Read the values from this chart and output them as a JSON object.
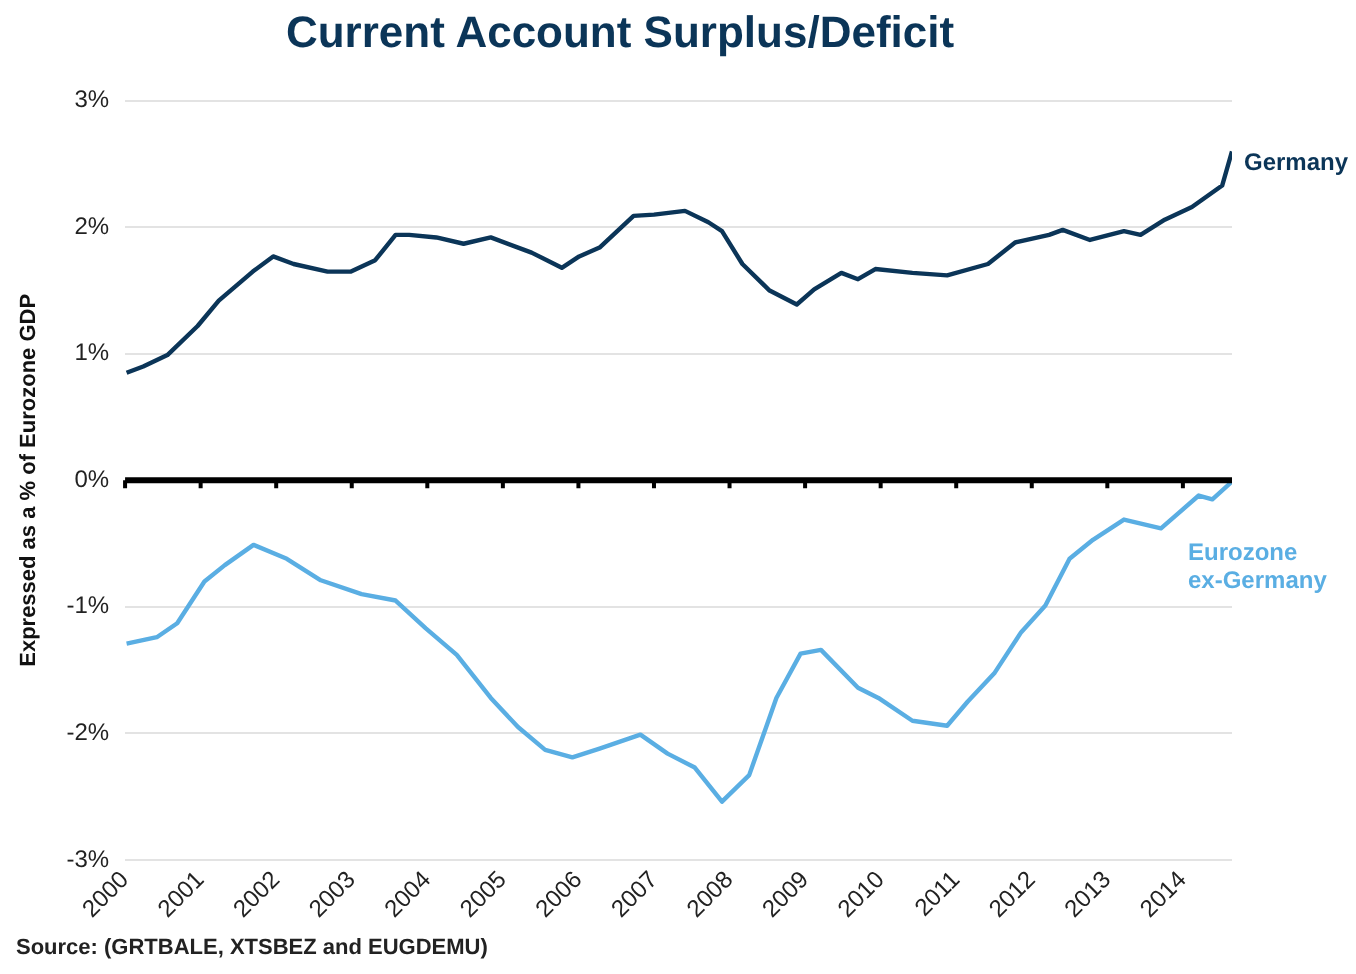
{
  "chart_data": {
    "type": "line",
    "title": "Current Account Surplus/Deficit",
    "ylabel": "Expressed as a % of Eurozone GDP",
    "annotations": [
      "Source: (GRTBALE, XTSBEZ and EUGDEMU)"
    ],
    "xlim": [
      2000,
      2014.65
    ],
    "xticks": [
      2000,
      2001,
      2002,
      2003,
      2004,
      2005,
      2006,
      2007,
      2008,
      2009,
      2010,
      2011,
      2012,
      2013,
      2014
    ],
    "ylim": [
      -3,
      3
    ],
    "yticks": [
      {
        "value": -3,
        "label": "-3%"
      },
      {
        "value": -2,
        "label": "-2%"
      },
      {
        "value": -1,
        "label": "-1%"
      },
      {
        "value": 0,
        "label": "0%"
      },
      {
        "value": 1,
        "label": "1%"
      },
      {
        "value": 2,
        "label": "2%"
      },
      {
        "value": 3,
        "label": "3%"
      }
    ],
    "grid": "y",
    "legend": false,
    "marker": "none",
    "line_style": "solid",
    "ref_lines": [
      {
        "axis": "y",
        "value": 0,
        "label": null,
        "color": "#000000"
      }
    ],
    "series": [
      {
        "name": "Germany",
        "color": "#0b3558",
        "x": [
          2000.02,
          2000.24,
          2000.56,
          2000.96,
          2001.24,
          2001.69,
          2001.96,
          2002.23,
          2002.68,
          2002.99,
          2003.31,
          2003.58,
          2003.76,
          2004.12,
          2004.48,
          2004.84,
          2005.38,
          2005.78,
          2006.01,
          2006.28,
          2006.73,
          2007.0,
          2007.41,
          2007.72,
          2007.9,
          2008.17,
          2008.53,
          2008.89,
          2009.12,
          2009.48,
          2009.7,
          2009.93,
          2010.42,
          2010.88,
          2011.42,
          2011.78,
          2012.23,
          2012.41,
          2012.77,
          2013.22,
          2013.44,
          2013.76,
          2014.12,
          2014.52,
          2014.65
        ],
        "values": [
          0.85,
          0.9,
          0.99,
          1.22,
          1.42,
          1.65,
          1.77,
          1.71,
          1.65,
          1.65,
          1.74,
          1.94,
          1.94,
          1.92,
          1.87,
          1.92,
          1.8,
          1.68,
          1.77,
          1.84,
          2.09,
          2.1,
          2.13,
          2.04,
          1.97,
          1.71,
          1.5,
          1.39,
          1.51,
          1.64,
          1.59,
          1.67,
          1.64,
          1.62,
          1.71,
          1.88,
          1.94,
          1.98,
          1.9,
          1.97,
          1.94,
          2.06,
          2.16,
          2.33,
          2.6
        ]
      },
      {
        "name": "Eurozone ex-Germany",
        "color": "#5aaee3",
        "x": [
          2000.02,
          2000.42,
          2000.69,
          2001.05,
          2001.32,
          2001.7,
          2002.14,
          2002.59,
          2003.13,
          2003.58,
          2003.98,
          2004.39,
          2004.84,
          2005.2,
          2005.56,
          2005.92,
          2006.28,
          2006.82,
          2007.18,
          2007.54,
          2007.9,
          2008.26,
          2008.62,
          2008.94,
          2009.21,
          2009.7,
          2009.97,
          2010.42,
          2010.88,
          2011.15,
          2011.51,
          2011.86,
          2012.18,
          2012.5,
          2012.81,
          2013.22,
          2013.71,
          2014.21,
          2014.39,
          2014.65
        ],
        "values": [
          -1.29,
          -1.24,
          -1.13,
          -0.8,
          -0.67,
          -0.51,
          -0.62,
          -0.79,
          -0.9,
          -0.95,
          -1.17,
          -1.38,
          -1.72,
          -1.95,
          -2.13,
          -2.19,
          -2.12,
          -2.01,
          -2.16,
          -2.27,
          -2.54,
          -2.33,
          -1.72,
          -1.37,
          -1.34,
          -1.64,
          -1.72,
          -1.9,
          -1.94,
          -1.75,
          -1.52,
          -1.2,
          -0.99,
          -0.62,
          -0.47,
          -0.31,
          -0.38,
          -0.12,
          -0.15,
          -0.01
        ]
      }
    ]
  }
}
